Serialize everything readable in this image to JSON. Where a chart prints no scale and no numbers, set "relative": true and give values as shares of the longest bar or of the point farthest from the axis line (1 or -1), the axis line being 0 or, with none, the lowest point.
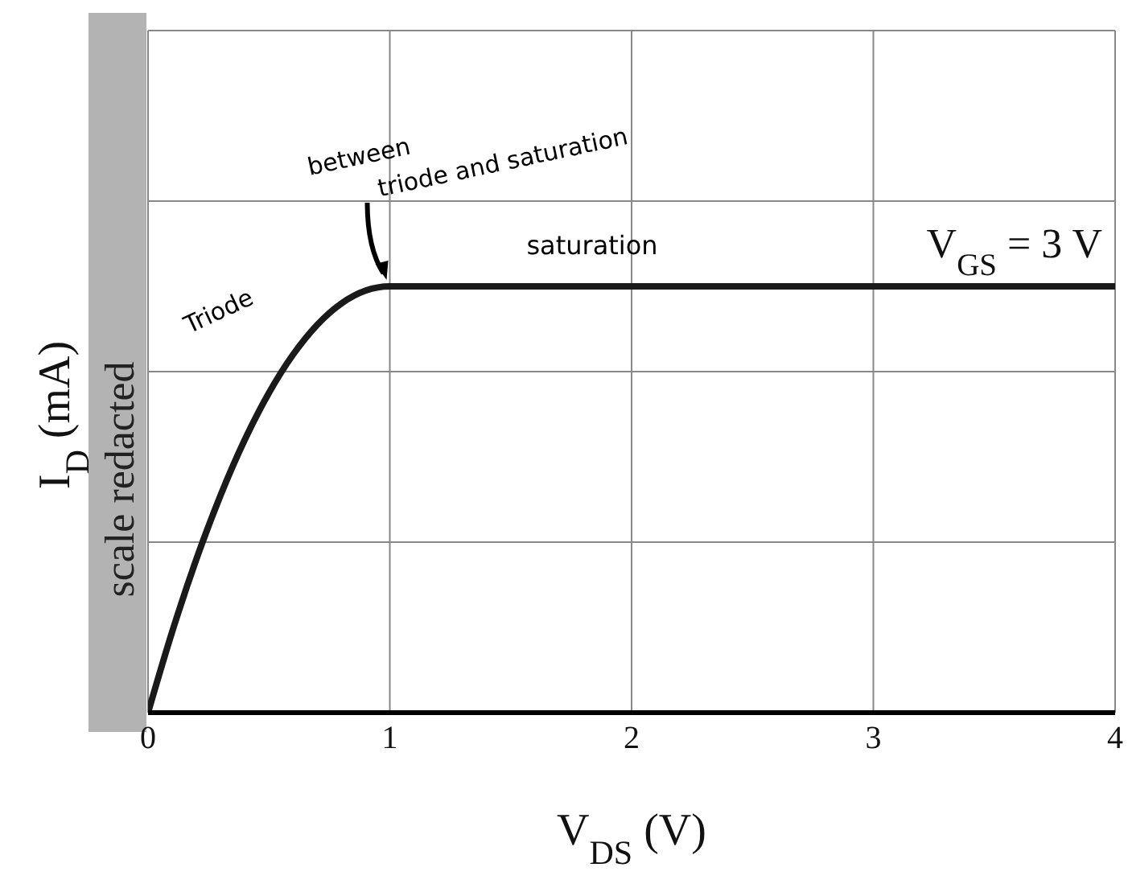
{
  "chart_data": {
    "type": "line",
    "relative": true,
    "xlabel": "V$_{DS}$ (V)",
    "ylabel": "I$_{D}$ (mA)",
    "x": [
      0,
      0.1,
      0.2,
      0.3,
      0.4,
      0.5,
      0.6,
      0.7,
      0.8,
      0.9,
      1,
      2,
      3,
      4
    ],
    "series": [
      {
        "name": "V$_{GS}$ = 3 V",
        "color": "#1a1a1a",
        "values": [
          0,
          0.19,
          0.36,
          0.51,
          0.64,
          0.75,
          0.84,
          0.91,
          0.96,
          0.99,
          1,
          1,
          1,
          1
        ]
      }
    ],
    "xlim": [
      0,
      4
    ],
    "xticks": [
      0,
      1,
      2,
      3,
      4
    ],
    "grid": true,
    "legend": false,
    "marker": "none",
    "line_style": "solid",
    "annotations": [
      "scale redacted",
      "Triode",
      {
        "text": "between triode and saturation",
        "x": 1,
        "y": 1
      },
      "saturation"
    ]
  }
}
